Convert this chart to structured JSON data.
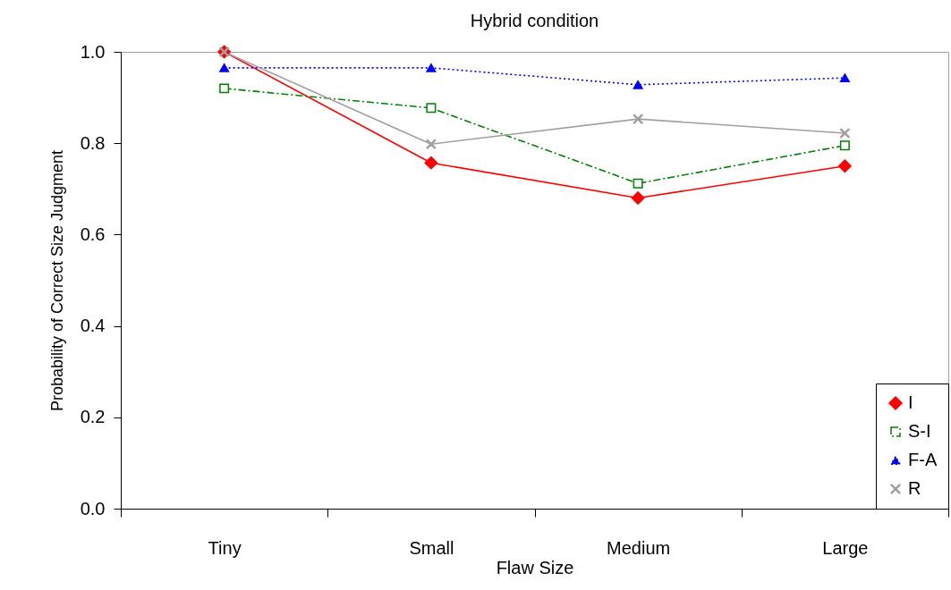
{
  "chart_data": {
    "type": "line",
    "title": "Hybrid condition",
    "xlabel": "Flaw Size",
    "ylabel": "Probability of Correct Size Judgment",
    "categories": [
      "Tiny",
      "Small",
      "Medium",
      "Large"
    ],
    "series": [
      {
        "name": "I",
        "color": "#ff0000",
        "marker": "diamond",
        "line_style": "solid",
        "values": [
          1.0,
          0.757,
          0.68,
          0.75
        ]
      },
      {
        "name": "S-I",
        "color": "#008000",
        "marker": "square",
        "line_style": "dashed",
        "values": [
          0.92,
          0.877,
          0.712,
          0.795
        ]
      },
      {
        "name": "F-A",
        "color": "#0000ff",
        "marker": "triangle",
        "line_style": "dotted",
        "values": [
          0.965,
          0.965,
          0.928,
          0.943
        ]
      },
      {
        "name": "R",
        "color": "#a0a0a0",
        "marker": "cross",
        "line_style": "solid",
        "values": [
          1.0,
          0.798,
          0.853,
          0.822
        ]
      }
    ],
    "ylim": [
      0,
      1
    ],
    "yticks": [
      {
        "value": 0,
        "label": "0.0"
      },
      0.2,
      0.4,
      0.6,
      0.8,
      {
        "value": 1,
        "label": "1.0"
      }
    ],
    "grid": false,
    "legend": "bottom right"
  }
}
